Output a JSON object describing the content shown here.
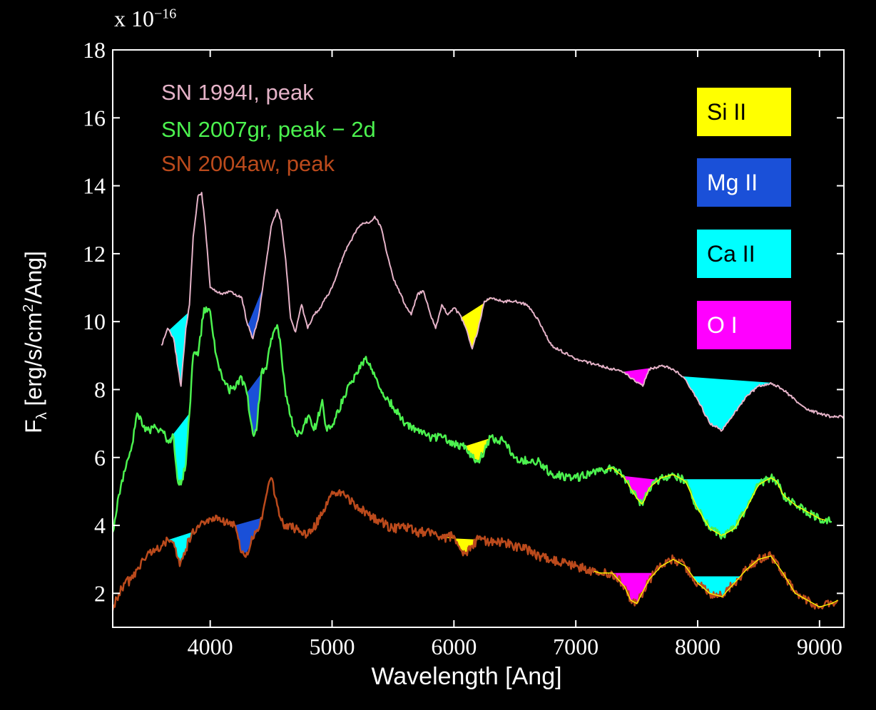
{
  "chart_data": {
    "type": "line",
    "multiplier": {
      "base": "x 10",
      "exponent": "−16"
    },
    "xlabel": "Wavelength [Ang]",
    "ylabel": {
      "main": "F",
      "sub": "λ",
      "units_pre": " [erg/s/cm",
      "units_sup": "2",
      "units_post": "/Ang]"
    },
    "xlim": [
      3200,
      9200
    ],
    "ylim": [
      1,
      18
    ],
    "xticks": [
      4000,
      5000,
      6000,
      7000,
      8000,
      9000
    ],
    "yticks": [
      2,
      4,
      6,
      8,
      10,
      12,
      14,
      16,
      18
    ],
    "grid": false,
    "series": [
      {
        "name": "SN 1994I, peak",
        "color": "#e5b3c8",
        "x": [
          3600,
          3650,
          3700,
          3760,
          3800,
          3830,
          3860,
          3900,
          3930,
          3960,
          4000,
          4050,
          4100,
          4150,
          4200,
          4260,
          4300,
          4350,
          4400,
          4450,
          4500,
          4550,
          4580,
          4620,
          4660,
          4700,
          4750,
          4800,
          4850,
          4900,
          4950,
          5000,
          5100,
          5200,
          5250,
          5300,
          5350,
          5400,
          5450,
          5500,
          5600,
          5650,
          5700,
          5750,
          5800,
          5850,
          5900,
          5950,
          6000,
          6050,
          6100,
          6150,
          6200,
          6250,
          6300,
          6400,
          6500,
          6600,
          6700,
          6800,
          7000,
          7200,
          7400,
          7500,
          7550,
          7600,
          7700,
          7800,
          7900,
          8000,
          8100,
          8200,
          8300,
          8400,
          8500,
          8600,
          8700,
          8800,
          8900,
          9000,
          9100,
          9200
        ],
        "y": [
          9.3,
          9.8,
          9.5,
          8.1,
          9.8,
          10.5,
          12.5,
          13.7,
          13.8,
          12.8,
          11.0,
          10.9,
          10.8,
          10.9,
          10.8,
          10.7,
          10.0,
          9.5,
          10.2,
          11.5,
          12.8,
          13.3,
          13.0,
          11.8,
          10.1,
          9.7,
          10.5,
          9.8,
          10.2,
          10.4,
          10.7,
          11.0,
          12.0,
          12.7,
          12.9,
          12.9,
          13.1,
          12.8,
          12.0,
          11.3,
          10.5,
          10.2,
          10.8,
          10.9,
          10.3,
          9.8,
          10.5,
          10.2,
          10.4,
          10.2,
          9.8,
          9.2,
          9.8,
          10.6,
          10.7,
          10.6,
          10.6,
          10.5,
          10.0,
          9.3,
          8.9,
          8.7,
          8.5,
          8.2,
          8.1,
          8.6,
          8.7,
          8.6,
          8.3,
          7.7,
          7.0,
          6.8,
          7.3,
          7.8,
          8.1,
          8.2,
          8.0,
          7.7,
          7.4,
          7.3,
          7.2,
          7.2
        ]
      },
      {
        "name": "SN 2007gr, peak − 2d",
        "color": "#4cf24f",
        "x": [
          3200,
          3250,
          3300,
          3350,
          3400,
          3450,
          3500,
          3550,
          3600,
          3650,
          3700,
          3730,
          3760,
          3800,
          3830,
          3860,
          3900,
          3950,
          4000,
          4050,
          4100,
          4150,
          4200,
          4250,
          4300,
          4350,
          4380,
          4420,
          4460,
          4500,
          4550,
          4580,
          4620,
          4660,
          4700,
          4750,
          4800,
          4850,
          4880,
          4920,
          4950,
          5000,
          5100,
          5200,
          5270,
          5320,
          5400,
          5500,
          5600,
          5700,
          5800,
          5900,
          6000,
          6100,
          6150,
          6200,
          6250,
          6300,
          6350,
          6400,
          6500,
          6600,
          6700,
          6800,
          7000,
          7200,
          7300,
          7400,
          7500,
          7550,
          7600,
          7700,
          7800,
          7900,
          8000,
          8100,
          8200,
          8300,
          8400,
          8500,
          8600,
          8650,
          8700,
          8800,
          8900,
          9000,
          9100
        ],
        "y": [
          3.8,
          4.9,
          5.6,
          6.2,
          7.3,
          6.9,
          6.8,
          6.9,
          6.8,
          6.5,
          6.6,
          5.4,
          5.2,
          5.8,
          7.3,
          9.0,
          9.0,
          10.4,
          10.3,
          9.0,
          8.3,
          8.0,
          8.0,
          8.4,
          7.9,
          6.7,
          6.8,
          8.5,
          8.6,
          9.5,
          9.9,
          9.2,
          7.8,
          7.2,
          6.7,
          6.7,
          7.2,
          6.8,
          7.1,
          7.7,
          6.9,
          6.9,
          7.8,
          8.5,
          8.9,
          8.6,
          8.0,
          7.5,
          7.0,
          6.8,
          6.6,
          6.6,
          6.4,
          6.3,
          6.0,
          5.9,
          6.2,
          6.6,
          6.5,
          6.5,
          6.0,
          5.9,
          5.9,
          5.5,
          5.4,
          5.6,
          5.7,
          5.4,
          4.8,
          4.6,
          5.1,
          5.4,
          5.5,
          5.3,
          4.5,
          3.9,
          3.7,
          3.9,
          4.5,
          5.2,
          5.4,
          5.3,
          4.9,
          4.6,
          4.4,
          4.2,
          4.1
        ]
      },
      {
        "name": "SN 2004aw, peak",
        "color": "#bb4a1c",
        "x": [
          3200,
          3250,
          3300,
          3350,
          3400,
          3450,
          3500,
          3550,
          3600,
          3650,
          3700,
          3750,
          3800,
          3850,
          3900,
          4000,
          4100,
          4200,
          4260,
          4300,
          4350,
          4400,
          4450,
          4500,
          4550,
          4600,
          4700,
          4800,
          4900,
          5000,
          5100,
          5200,
          5300,
          5400,
          5500,
          5600,
          5700,
          5800,
          5900,
          6000,
          6050,
          6100,
          6150,
          6200,
          6300,
          6400,
          6500,
          6600,
          6700,
          6800,
          6900,
          7000,
          7100,
          7200,
          7300,
          7400,
          7450,
          7500,
          7600,
          7700,
          7800,
          7900,
          8000,
          8100,
          8200,
          8300,
          8400,
          8500,
          8600,
          8700,
          8800,
          8900,
          9000,
          9100,
          9150
        ],
        "y": [
          1.5,
          2.0,
          2.3,
          2.4,
          2.7,
          3.0,
          3.2,
          3.3,
          3.4,
          3.6,
          3.5,
          2.8,
          3.3,
          3.8,
          4.0,
          4.2,
          4.1,
          4.0,
          3.2,
          3.2,
          3.6,
          3.9,
          4.7,
          5.4,
          4.6,
          4.0,
          3.9,
          3.7,
          4.2,
          5.0,
          4.9,
          4.6,
          4.3,
          4.1,
          3.9,
          4.0,
          3.8,
          3.8,
          3.6,
          3.7,
          3.3,
          3.2,
          3.4,
          3.6,
          3.5,
          3.5,
          3.4,
          3.3,
          3.1,
          3.0,
          2.9,
          2.8,
          2.7,
          2.6,
          2.6,
          2.2,
          1.8,
          1.7,
          2.4,
          2.8,
          3.0,
          2.8,
          2.3,
          2.0,
          1.9,
          2.3,
          2.7,
          3.0,
          3.1,
          2.6,
          2.0,
          1.8,
          1.6,
          1.7,
          1.8
        ]
      }
    ],
    "absorption_features": [
      {
        "ion": "Ca II",
        "series": 0,
        "x0": 3660,
        "x1": 3820
      },
      {
        "ion": "Mg II",
        "series": 0,
        "x0": 4310,
        "x1": 4430
      },
      {
        "ion": "Si II",
        "series": 0,
        "x0": 6060,
        "x1": 6310
      },
      {
        "ion": "O I",
        "series": 0,
        "x0": 7380,
        "x1": 7650
      },
      {
        "ion": "Ca II",
        "series": 0,
        "x0": 7870,
        "x1": 8600
      },
      {
        "ion": "Ca II",
        "series": 1,
        "x0": 3660,
        "x1": 3830
      },
      {
        "ion": "Mg II",
        "series": 1,
        "x0": 4300,
        "x1": 4430
      },
      {
        "ion": "Si II",
        "series": 1,
        "x0": 6080,
        "x1": 6310
      },
      {
        "ion": "O I",
        "series": 1,
        "x0": 7380,
        "x1": 7680
      },
      {
        "ion": "Ca II",
        "series": 1,
        "x0": 7870,
        "x1": 8620
      },
      {
        "ion": "Ca II",
        "series": 2,
        "x0": 3660,
        "x1": 3850
      },
      {
        "ion": "Mg II",
        "series": 2,
        "x0": 4200,
        "x1": 4420
      },
      {
        "ion": "Si II",
        "series": 2,
        "x0": 5930,
        "x1": 6220
      },
      {
        "ion": "O I",
        "series": 2,
        "x0": 7260,
        "x1": 7650
      },
      {
        "ion": "Ca II",
        "series": 2,
        "x0": 7960,
        "x1": 8350
      }
    ],
    "ion_key": [
      {
        "label": "Si II",
        "color": "#ffff00",
        "text_color": "#000000"
      },
      {
        "label": "Mg II",
        "color": "#1a50d8",
        "text_color": "#ffffff"
      },
      {
        "label": "Ca II",
        "color": "#00ffff",
        "text_color": "#000000"
      },
      {
        "label": "O I",
        "color": "#ff00ff",
        "text_color": "#ffffff"
      }
    ],
    "fit_color": "#ffff00"
  }
}
